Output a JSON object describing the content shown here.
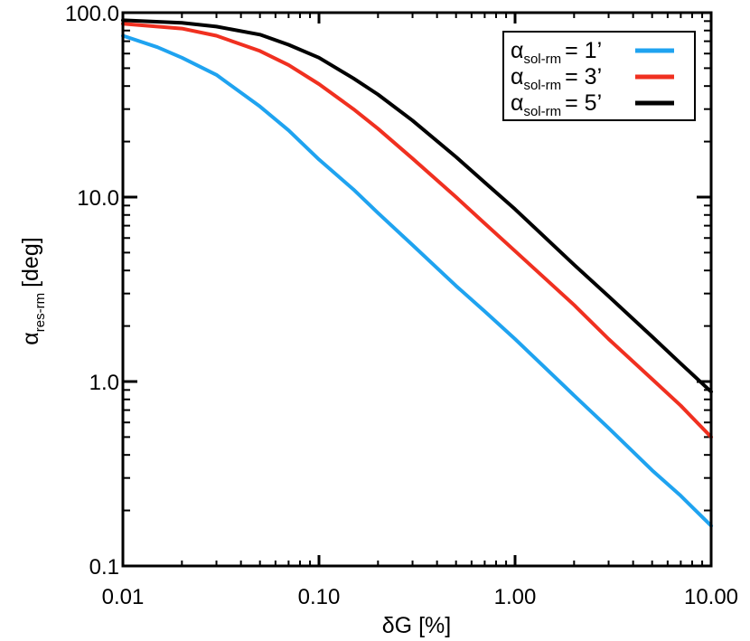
{
  "chart_data": {
    "type": "line",
    "xlabel": {
      "base": "δG",
      "unit": "[%]"
    },
    "ylabel": {
      "symbol": "α",
      "subscript": "res-rm",
      "unit": "[deg]"
    },
    "x_scale": "log",
    "y_scale": "log",
    "xlim": [
      0.01,
      10.0
    ],
    "ylim": [
      0.1,
      100.0
    ],
    "x_ticks": [
      {
        "value": 0.01,
        "label": "0.01"
      },
      {
        "value": 0.1,
        "label": "0.10"
      },
      {
        "value": 1.0,
        "label": "1.00"
      },
      {
        "value": 10.0,
        "label": "10.00"
      }
    ],
    "y_ticks": [
      {
        "value": 0.1,
        "label": "0.1"
      },
      {
        "value": 1.0,
        "label": "1.0"
      },
      {
        "value": 10.0,
        "label": "10.0"
      },
      {
        "value": 100.0,
        "label": "100.0"
      }
    ],
    "grid": false,
    "legend_position": "top-right",
    "series": [
      {
        "name": "1'",
        "legend": {
          "symbol": "α",
          "subscript": "sol-rm",
          "value": "= 1’"
        },
        "color": "#1fa3f0",
        "x": [
          0.01,
          0.015,
          0.02,
          0.03,
          0.05,
          0.07,
          0.1,
          0.15,
          0.2,
          0.3,
          0.5,
          0.7,
          1.0,
          2.0,
          3.0,
          5.0,
          7.0,
          10.0
        ],
        "y": [
          75,
          65,
          57,
          46,
          31,
          23,
          16,
          11,
          8.2,
          5.5,
          3.3,
          2.4,
          1.7,
          0.84,
          0.56,
          0.33,
          0.24,
          0.165
        ]
      },
      {
        "name": "3'",
        "legend": {
          "symbol": "α",
          "subscript": "sol-rm",
          "value": "= 3’"
        },
        "color": "#f03020",
        "x": [
          0.01,
          0.02,
          0.03,
          0.05,
          0.07,
          0.1,
          0.15,
          0.2,
          0.3,
          0.5,
          0.7,
          1.0,
          2.0,
          3.0,
          5.0,
          7.0,
          10.0
        ],
        "y": [
          87,
          82,
          75,
          62,
          52,
          41,
          30,
          23.5,
          16.2,
          10,
          7.2,
          5.1,
          2.6,
          1.7,
          1.03,
          0.74,
          0.5
        ]
      },
      {
        "name": "5'",
        "legend": {
          "symbol": "α",
          "subscript": "sol-rm",
          "value": "= 5’"
        },
        "color": "#000000",
        "x": [
          0.01,
          0.02,
          0.03,
          0.05,
          0.07,
          0.1,
          0.15,
          0.2,
          0.3,
          0.5,
          0.7,
          1.0,
          2.0,
          3.0,
          5.0,
          7.0,
          10.0
        ],
        "y": [
          91,
          88,
          84,
          76,
          67,
          57,
          44,
          36,
          26,
          16.5,
          12,
          8.6,
          4.3,
          2.9,
          1.75,
          1.25,
          0.88
        ]
      }
    ]
  }
}
